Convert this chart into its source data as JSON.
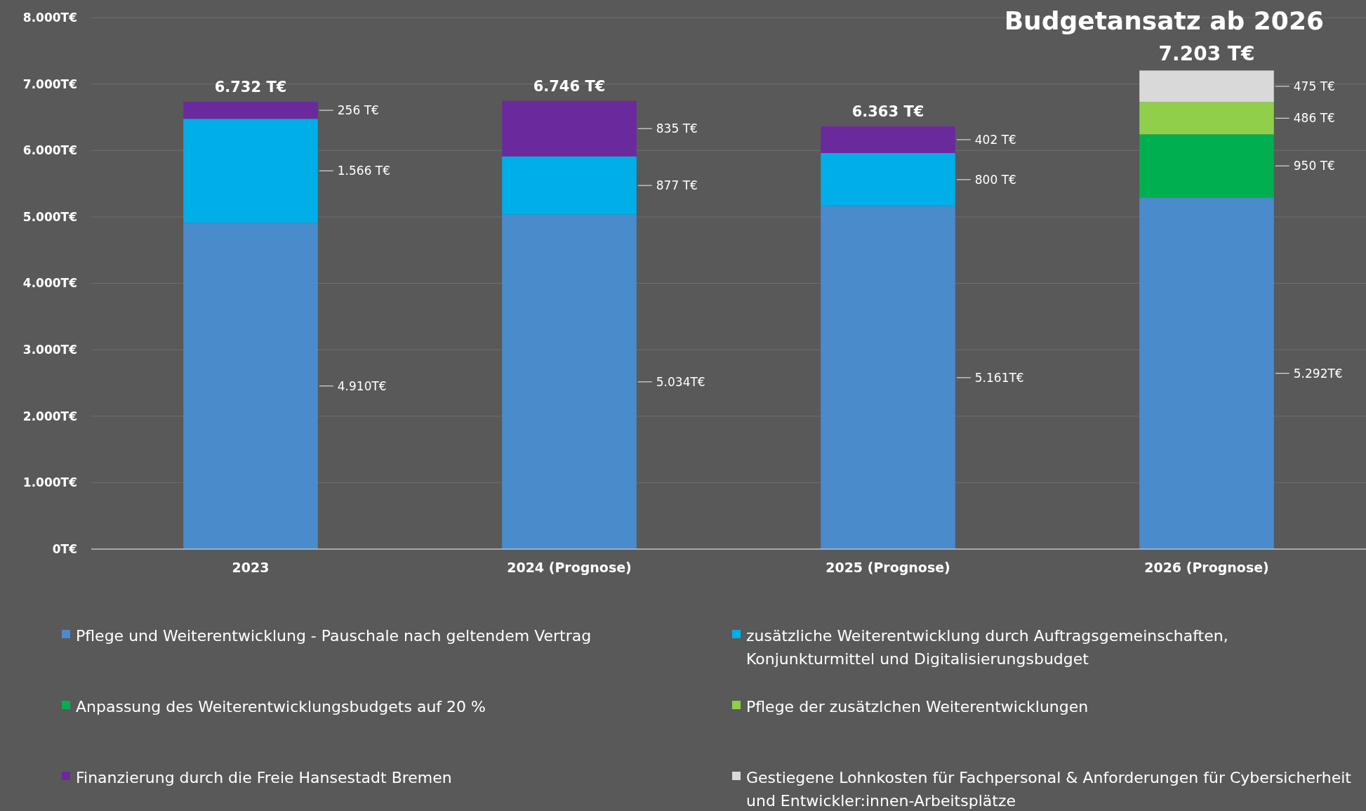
{
  "chart_data": {
    "type": "bar",
    "stacked": true,
    "title": "Budgetansatz ab 2026",
    "categories": [
      "2023",
      "2024 (Prognose)",
      "2025 (Prognose)",
      "2026 (Prognose)"
    ],
    "series": [
      {
        "name": "Pflege und Weiterentwicklung - Pauschale nach geltendem Vertrag",
        "color": "#4a8bcc",
        "values": [
          4910,
          5034,
          5161,
          5292
        ],
        "value_labels": [
          "4.910T€",
          "5.034T€",
          "5.161T€",
          "5.292T€"
        ]
      },
      {
        "name": "zusätzliche Weiterentwicklung durch Auftragsgemeinschaften, Konjunkturmittel und Digitalisierungsbudget",
        "color": "#00aee8",
        "values": [
          1566,
          877,
          800,
          null
        ],
        "value_labels": [
          "1.566 T€",
          "877 T€",
          "800 T€",
          null
        ]
      },
      {
        "name": "Anpassung des Weiterentwicklungsbudgets auf 20 %",
        "color": "#00b050",
        "values": [
          null,
          null,
          null,
          950
        ],
        "value_labels": [
          null,
          null,
          null,
          "950 T€"
        ]
      },
      {
        "name": "Pflege der zusätzlchen Weiterentwicklungen",
        "color": "#8fcf4a",
        "values": [
          null,
          null,
          null,
          486
        ],
        "value_labels": [
          null,
          null,
          null,
          "486 T€"
        ]
      },
      {
        "name": "Finanzierung durch die Freie Hansestadt Bremen",
        "color": "#6a2a9e",
        "values": [
          256,
          835,
          402,
          null
        ],
        "value_labels": [
          "256 T€",
          "835 T€",
          "402 T€",
          null
        ]
      },
      {
        "name": "Gestiegene Lohnkosten für Fachpersonal & Anforderungen für Cybersicherheit und Entwickler:innen-Arbeitsplätze",
        "color": "#d9d9d9",
        "values": [
          null,
          null,
          null,
          475
        ],
        "value_labels": [
          null,
          null,
          null,
          "475 T€"
        ]
      }
    ],
    "totals": [
      "6.732 T€",
      "6.746 T€",
      "6.363 T€",
      "7.203 T€"
    ],
    "ylim": [
      0,
      8000
    ],
    "yticks": [
      {
        "value": 0,
        "label": "0T€"
      },
      {
        "value": 1000,
        "label": "1.000T€"
      },
      {
        "value": 2000,
        "label": "2.000T€"
      },
      {
        "value": 3000,
        "label": "3.000T€"
      },
      {
        "value": 4000,
        "label": "4.000T€"
      },
      {
        "value": 5000,
        "label": "5.000T€"
      },
      {
        "value": 6000,
        "label": "6.000T€"
      },
      {
        "value": 7000,
        "label": "7.000T€"
      },
      {
        "value": 8000,
        "label": "8.000T€"
      }
    ],
    "grid": "y",
    "legend": "bottom"
  }
}
